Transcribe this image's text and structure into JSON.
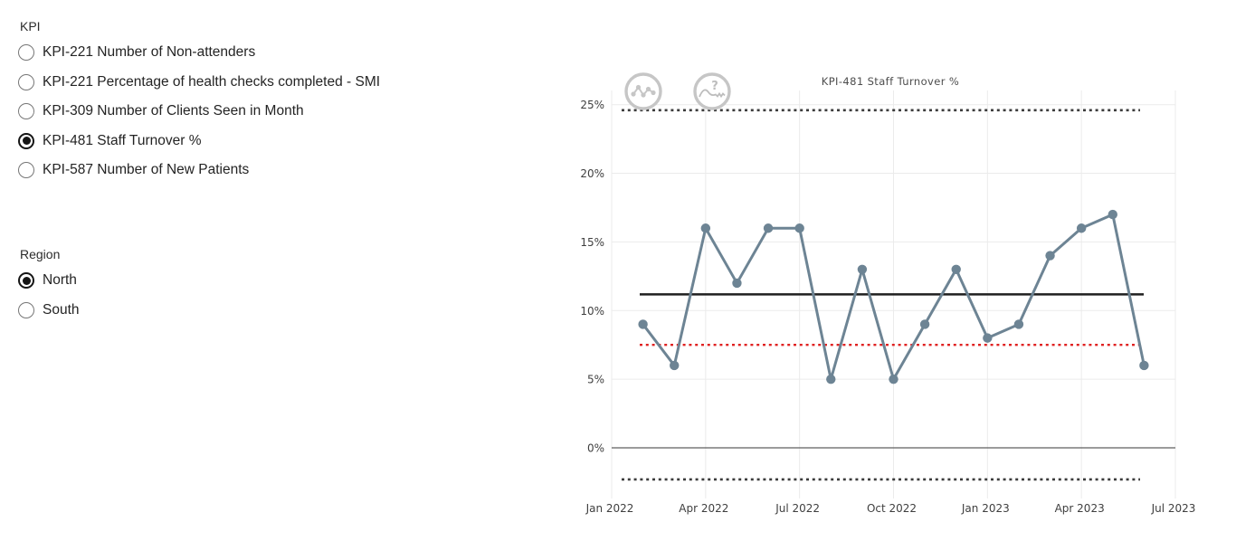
{
  "page": {
    "background": "#ffffff"
  },
  "kpi_panel": {
    "label": "KPI",
    "options": [
      {
        "label": "KPI-221 Number of Non-attenders",
        "selected": false
      },
      {
        "label": "KPI-221 Percentage of health checks completed - SMI",
        "selected": false
      },
      {
        "label": "KPI-309 Number of Clients Seen in Month",
        "selected": false
      },
      {
        "label": "KPI-481 Staff Turnover %",
        "selected": true
      },
      {
        "label": "KPI-587 Number of New Patients",
        "selected": false
      }
    ]
  },
  "region_panel": {
    "label": "Region",
    "options": [
      {
        "label": "North",
        "selected": true
      },
      {
        "label": "South",
        "selected": false
      }
    ]
  },
  "chart_data": {
    "type": "line",
    "title": "KPI-481 Staff Turnover %",
    "x": [
      "Feb 2022",
      "Mar 2022",
      "Apr 2022",
      "May 2022",
      "Jun 2022",
      "Jul 2022",
      "Aug 2022",
      "Sep 2022",
      "Oct 2022",
      "Nov 2022",
      "Dec 2022",
      "Jan 2023",
      "Feb 2023",
      "Mar 2023",
      "Apr 2023",
      "May 2023",
      "Jun 2023"
    ],
    "values": [
      9,
      6,
      16,
      12,
      16,
      16,
      5,
      13,
      5,
      9,
      13,
      8,
      9,
      14,
      16,
      17,
      6
    ],
    "unit": "%",
    "x_axis": {
      "tick_labels": [
        "Jan 2022",
        "Apr 2022",
        "Jul 2022",
        "Oct 2022",
        "Jan 2023",
        "Apr 2023",
        "Jul 2023"
      ],
      "tick_positions_months": [
        0,
        3,
        6,
        9,
        12,
        15,
        18
      ],
      "range_months": [
        0,
        18
      ]
    },
    "y_axis": {
      "tick_labels": [
        "0%",
        "5%",
        "10%",
        "15%",
        "20%",
        "25%"
      ],
      "tick_values": [
        0,
        5,
        10,
        15,
        20,
        25
      ],
      "range_percent": [
        -3.3,
        26
      ]
    },
    "reference_lines": [
      {
        "name": "upper-process-limit",
        "value": 24.6,
        "style": "dotted",
        "color": "#3c3c3c"
      },
      {
        "name": "mean",
        "value": 11.18,
        "style": "solid",
        "color": "#1f1f1f"
      },
      {
        "name": "target",
        "value": 7.5,
        "style": "dotted",
        "color": "#e02222"
      },
      {
        "name": "lower-process-limit",
        "value": -2.3,
        "style": "dotted",
        "color": "#3c3c3c"
      }
    ],
    "series_color": "#6d8494",
    "grid": true,
    "grid_color": "#ebebeb",
    "zero_line_color": "#5f5f5f",
    "legend": "none",
    "icons": [
      {
        "name": "variation-icon",
        "color": "#c6c6c6"
      },
      {
        "name": "assurance-question-icon",
        "color": "#c6c6c6",
        "glyph": "?"
      }
    ],
    "title_color": "#4d4d4d",
    "axis_label_color": "#3f3f3f"
  }
}
